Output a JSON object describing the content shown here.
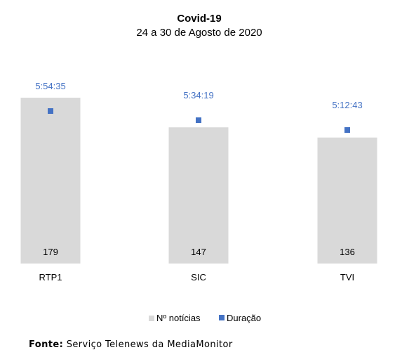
{
  "chart_data": {
    "type": "bar",
    "title": "Covid-19",
    "subtitle": "24 a 30 de Agosto de 2020",
    "categories": [
      "RTP1",
      "SIC",
      "TVI"
    ],
    "series": [
      {
        "name": "Nº notícias",
        "kind": "bar",
        "color": "#d9d9d9",
        "values": [
          179,
          147,
          136
        ],
        "labels": [
          "179",
          "147",
          "136"
        ]
      },
      {
        "name": "Duração",
        "kind": "marker",
        "color": "#4472c4",
        "values": [
          "5:54:35",
          "5:34:19",
          "5:12:43"
        ]
      }
    ],
    "legend_position": "bottom",
    "grid": false
  },
  "source": {
    "label": "Fonte:",
    "text": "Serviço Telenews da MediaMonitor"
  }
}
